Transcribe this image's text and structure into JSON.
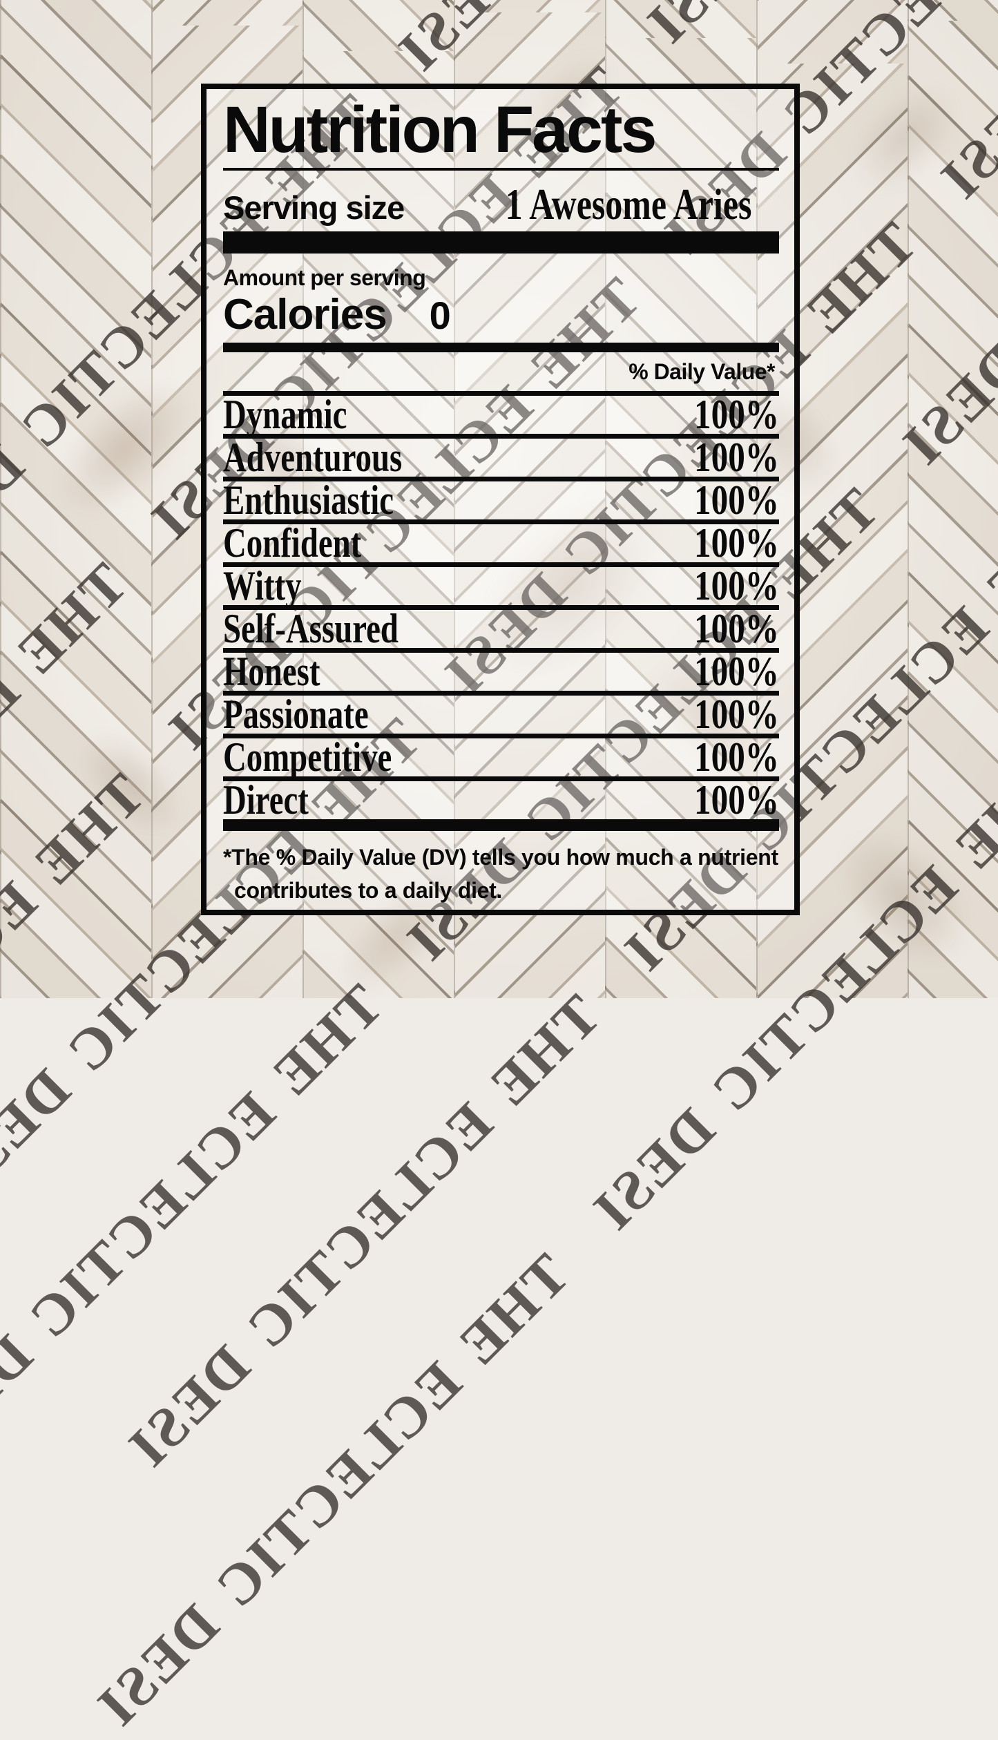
{
  "colors": {
    "ink": "#0a0a0a",
    "watermark": "rgba(54,48,43,0.78)",
    "wood_base": "#efece8"
  },
  "watermark": {
    "text": "THE ECLECTIC DESI",
    "mirrored": true,
    "angle_deg": -45,
    "lines": [
      {
        "c": 680,
        "d": -140
      },
      {
        "c": 1000,
        "d": 60
      },
      {
        "c": 1330,
        "d": -80
      },
      {
        "c": 1650,
        "d": 160
      },
      {
        "c": 1980,
        "d": -60
      },
      {
        "c": 2310,
        "d": 90
      },
      {
        "c": 2640,
        "d": -120
      }
    ]
  },
  "label": {
    "title": "Nutrition Facts",
    "serving": {
      "label": "Serving size",
      "value": "1 Awesome Aries"
    },
    "amount_label": "Amount per serving",
    "calories": {
      "label": "Calories",
      "value": "0"
    },
    "daily_value_header": "% Daily Value*",
    "rows": [
      {
        "name": "Dynamic",
        "value": "100%"
      },
      {
        "name": "Adventurous",
        "value": "100%"
      },
      {
        "name": "Enthusiastic",
        "value": "100%"
      },
      {
        "name": "Confident",
        "value": "100%"
      },
      {
        "name": "Witty",
        "value": "100%"
      },
      {
        "name": "Self-Assured",
        "value": "100%"
      },
      {
        "name": "Honest",
        "value": "100%"
      },
      {
        "name": "Passionate",
        "value": "100%"
      },
      {
        "name": "Competitive",
        "value": "100%"
      },
      {
        "name": "Direct",
        "value": "100%"
      }
    ],
    "footnote_line1": "*The % Daily Value (DV) tells you how much a nutrient",
    "footnote_line2": "contributes to a daily diet."
  }
}
